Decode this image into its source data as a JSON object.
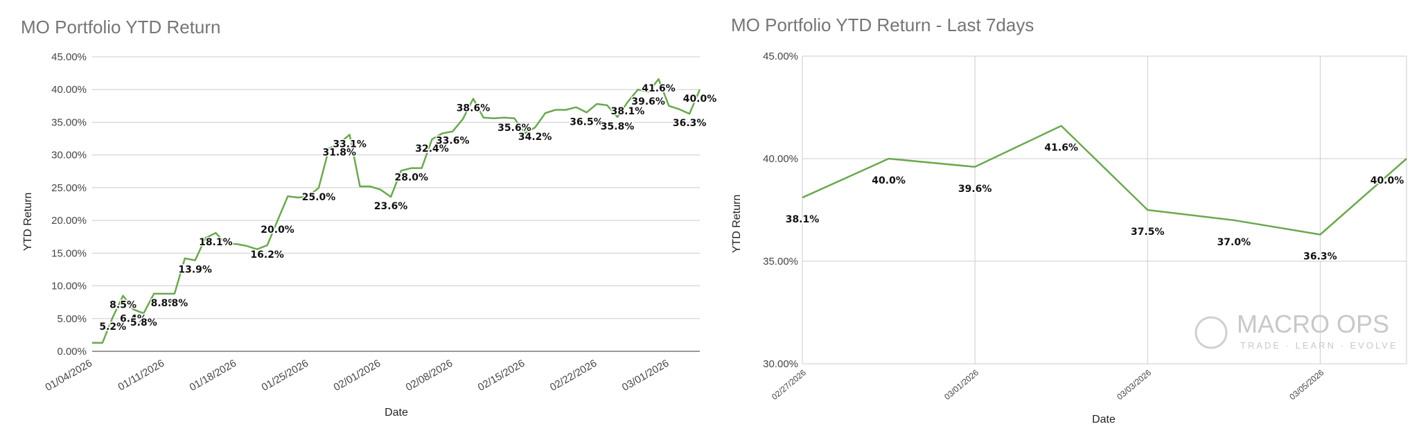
{
  "chart_data": [
    {
      "type": "line",
      "title": "MO Portfolio YTD Return",
      "xlabel": "Date",
      "ylabel": "YTD Return",
      "ylim": [
        0,
        45
      ],
      "yticks": [
        "0.00%",
        "5.00%",
        "10.00%",
        "15.00%",
        "20.00%",
        "25.00%",
        "30.00%",
        "35.00%",
        "40.00%",
        "45.00%"
      ],
      "xticks": [
        "01/04/2026",
        "01/11/2026",
        "01/18/2026",
        "01/25/2026",
        "02/01/2026",
        "02/08/2026",
        "02/15/2026",
        "02/22/2026",
        "03/01/2026"
      ],
      "series_color": "#6aa84f",
      "values": [
        1.3,
        1.3,
        5.2,
        8.5,
        6.4,
        5.8,
        8.8,
        8.8,
        8.8,
        14.2,
        13.9,
        17.3,
        18.1,
        16.4,
        16.4,
        16.1,
        15.6,
        16.2,
        20.0,
        23.7,
        23.5,
        23.7,
        25.0,
        31.0,
        31.8,
        33.1,
        25.2,
        25.2,
        24.7,
        23.6,
        27.6,
        28.0,
        28.0,
        32.4,
        33.3,
        33.6,
        35.5,
        38.6,
        35.7,
        35.6,
        35.7,
        35.6,
        33.3,
        34.2,
        36.4,
        36.9,
        36.9,
        37.3,
        36.5,
        37.8,
        37.6,
        35.8,
        38.1,
        40.0,
        39.6,
        41.6,
        37.5,
        37.0,
        36.3,
        40.0
      ],
      "data_labels": [
        {
          "index": 2,
          "text": "5.2%"
        },
        {
          "index": 3,
          "text": "8.5%"
        },
        {
          "index": 4,
          "text": "6.4%"
        },
        {
          "index": 5,
          "text": "5.8%"
        },
        {
          "index": 7,
          "text": "8.8%"
        },
        {
          "index": 8,
          "text": "8.8%"
        },
        {
          "index": 10,
          "text": "13.9%"
        },
        {
          "index": 12,
          "text": "18.1%"
        },
        {
          "index": 17,
          "text": "16.2%"
        },
        {
          "index": 18,
          "text": "20.0%"
        },
        {
          "index": 22,
          "text": "25.0%"
        },
        {
          "index": 24,
          "text": "31.8%"
        },
        {
          "index": 25,
          "text": "33.1%"
        },
        {
          "index": 29,
          "text": "23.6%"
        },
        {
          "index": 31,
          "text": "28.0%"
        },
        {
          "index": 33,
          "text": "32.4%"
        },
        {
          "index": 35,
          "text": "33.6%"
        },
        {
          "index": 37,
          "text": "38.6%"
        },
        {
          "index": 41,
          "text": "35.6%"
        },
        {
          "index": 43,
          "text": "34.2%"
        },
        {
          "index": 48,
          "text": "36.5%"
        },
        {
          "index": 51,
          "text": "35.8%"
        },
        {
          "index": 52,
          "text": "38.1%"
        },
        {
          "index": 54,
          "text": "39.6%"
        },
        {
          "index": 55,
          "text": "41.6%"
        },
        {
          "index": 58,
          "text": "36.3%"
        },
        {
          "index": 59,
          "text": "40.0%"
        }
      ]
    },
    {
      "type": "line",
      "title": "MO Portfolio YTD Return - Last 7days",
      "xlabel": "Date",
      "ylabel": "YTD Return",
      "ylim": [
        30,
        45
      ],
      "yticks": [
        "30.00%",
        "35.00%",
        "40.00%",
        "45.00%"
      ],
      "xticks": [
        "02/27/2026",
        "03/01/2026",
        "03/03/2026",
        "03/05/2026"
      ],
      "series_color": "#6aa84f",
      "values": [
        38.1,
        40.0,
        39.6,
        41.6,
        37.5,
        37.0,
        36.3,
        40.0
      ],
      "data_labels": [
        {
          "index": 0,
          "text": "38.1%"
        },
        {
          "index": 1,
          "text": "40.0%"
        },
        {
          "index": 2,
          "text": "39.6%"
        },
        {
          "index": 3,
          "text": "41.6%"
        },
        {
          "index": 4,
          "text": "37.5%"
        },
        {
          "index": 5,
          "text": "37.0%"
        },
        {
          "index": 6,
          "text": "36.3%"
        },
        {
          "index": 7,
          "text": "40.0%"
        }
      ]
    }
  ],
  "watermark": {
    "brand": "MACRO OPS",
    "tagline": "TRADE · LEARN · EVOLVE"
  }
}
